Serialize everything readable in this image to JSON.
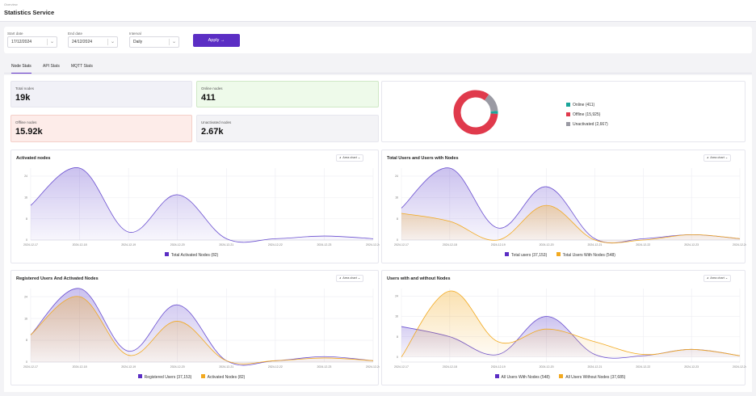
{
  "header": {
    "breadcrumb": "Overview",
    "title": "Statistics Service"
  },
  "filters": {
    "start_label": "Start date",
    "start_value": "17/12/2024",
    "end_label": "End date",
    "end_value": "24/12/2024",
    "interval_label": "Interval",
    "interval_value": "Daily",
    "apply_label": "Apply →"
  },
  "tabs": [
    {
      "label": "Node Stats",
      "active": true
    },
    {
      "label": "API Stats",
      "active": false
    },
    {
      "label": "MQTT Stats",
      "active": false
    }
  ],
  "stats": {
    "total": {
      "label": "Total nodes",
      "value": "19k"
    },
    "online": {
      "label": "Online nodes",
      "value": "411"
    },
    "offline": {
      "label": "Offline nodes",
      "value": "15.92k"
    },
    "unactivated": {
      "label": "Unactivated nodes",
      "value": "2.67k"
    }
  },
  "colors": {
    "accent": "#5b2ec4",
    "purple": "#6a4fd0",
    "orange": "#f2a91f",
    "online": "#1aa59a",
    "offline": "#e03a4c",
    "unactivated": "#9a9aa3"
  },
  "donut": {
    "legend": [
      {
        "label": "Online (411)",
        "color": "#1aa59a"
      },
      {
        "label": "Offline (15,925)",
        "color": "#e03a4c"
      },
      {
        "label": "Unactivated (2,667)",
        "color": "#9a9aa3"
      }
    ],
    "chart_data": {
      "type": "pie",
      "categories": [
        "Online",
        "Offline",
        "Unactivated"
      ],
      "values": [
        411,
        15925,
        2667
      ]
    }
  },
  "dates": [
    "2024-12-17",
    "2024-12-18",
    "2024-12-19",
    "2024-12-20",
    "2024-12-21",
    "2024-12-22",
    "2024-12-23",
    "2024-12-24"
  ],
  "chart_select_label": "Area chart",
  "charts": [
    {
      "title": "Activated nodes",
      "yticks": [
        "0",
        "8",
        "16",
        "24"
      ],
      "chart_data": {
        "type": "area",
        "x": [
          "2024-12-17",
          "2024-12-18",
          "2024-12-19",
          "2024-12-20",
          "2024-12-21",
          "2024-12-22",
          "2024-12-23",
          "2024-12-24"
        ],
        "series": [
          {
            "name": "Total Activated Nodes (82)",
            "color": "#6a4fd0",
            "values": [
              13,
              27,
              3,
              17,
              0.5,
              0.5,
              1.5,
              0.5
            ]
          }
        ],
        "ylim": [
          0,
          27
        ]
      }
    },
    {
      "title": "Total Users and Users with Nodes",
      "yticks": [
        "0",
        "8",
        "16",
        "24"
      ],
      "chart_data": {
        "type": "area",
        "x": [
          "2024-12-17",
          "2024-12-18",
          "2024-12-19",
          "2024-12-20",
          "2024-12-21",
          "2024-12-22",
          "2024-12-23",
          "2024-12-24"
        ],
        "series": [
          {
            "name": "Total users (37,153)",
            "color": "#6a4fd0",
            "values": [
              12,
              27,
              4.5,
              20,
              0.5,
              0.5,
              2,
              0.5
            ]
          },
          {
            "name": "Total Users With Nodes (548)",
            "color": "#f2a91f",
            "values": [
              10,
              7,
              0,
              13,
              0,
              0,
              2,
              0.5
            ]
          }
        ],
        "ylim": [
          0,
          27
        ]
      }
    },
    {
      "title": "Registered Users And Activated Nodes",
      "yticks": [
        "0",
        "8",
        "16",
        "24"
      ],
      "chart_data": {
        "type": "area",
        "x": [
          "2024-12-17",
          "2024-12-18",
          "2024-12-19",
          "2024-12-20",
          "2024-12-21",
          "2024-12-22",
          "2024-12-23",
          "2024-12-24"
        ],
        "series": [
          {
            "name": "Registered Users (37,153)",
            "color": "#6a4fd0",
            "values": [
              10,
              27,
              4,
              21,
              0.5,
              0.5,
              2,
              0.5
            ]
          },
          {
            "name": "Activated Nodes (82)",
            "color": "#f2a91f",
            "values": [
              10,
              24,
              2.5,
              15,
              0.5,
              0.5,
              1.5,
              0.5
            ]
          }
        ],
        "ylim": [
          0,
          27
        ]
      }
    },
    {
      "title": "Users with and without Nodes",
      "yticks": [
        "0",
        "8",
        "16",
        "24"
      ],
      "chart_data": {
        "type": "area",
        "x": [
          "2024-12-17",
          "2024-12-18",
          "2024-12-19",
          "2024-12-20",
          "2024-12-21",
          "2024-12-22",
          "2024-12-23",
          "2024-12-24"
        ],
        "series": [
          {
            "name": "All Users With Nodes (548)",
            "color": "#6a4fd0",
            "values": [
              12,
              8,
              1,
              16,
              1,
              0.5,
              3,
              0.5
            ]
          },
          {
            "name": "All Users Without Nodes (37,685)",
            "color": "#f2a91f",
            "values": [
              0,
              26,
              6,
              11,
              6,
              1,
              3,
              0.5
            ]
          }
        ],
        "ylim": [
          -2,
          27
        ]
      }
    }
  ]
}
